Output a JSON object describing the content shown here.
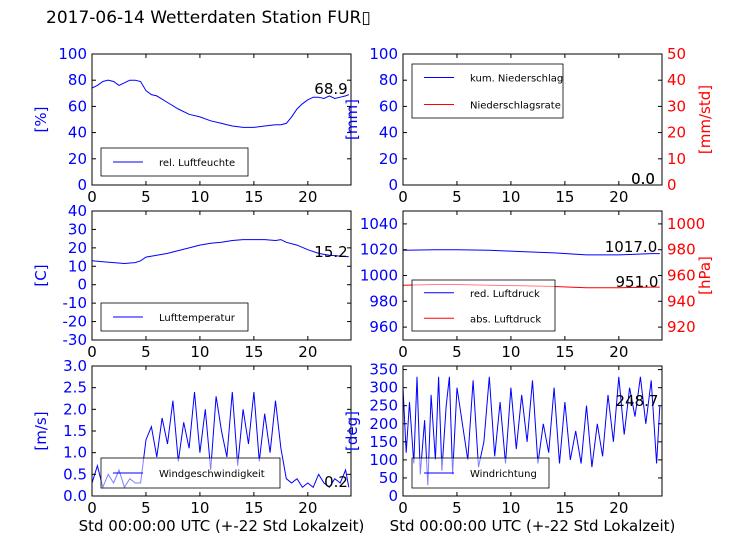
{
  "figure_title": "2017-06-14 Wetterdaten Station FUR▯",
  "colors": {
    "primary": "#0000ff",
    "secondary": "#ff0000",
    "frame": "#000000"
  },
  "chart_data": [
    {
      "type": "line",
      "ylabel": "[%]",
      "xlim": [
        0,
        24
      ],
      "ylim": [
        0,
        100
      ],
      "xticks": [
        0,
        5,
        10,
        15,
        20
      ],
      "yticks": [
        0,
        20,
        40,
        60,
        80,
        100
      ],
      "xlabel": "",
      "last_value_label": "68.9",
      "legend": {
        "placement": "bottom-left",
        "entries": [
          "rel. Luftfeuchte"
        ]
      },
      "series": [
        {
          "name": "rel. Luftfeuchte",
          "color": "#0000ff",
          "x": [
            0,
            0.5,
            1,
            1.5,
            2,
            2.5,
            3,
            3.5,
            4,
            4.5,
            5,
            5.5,
            6,
            7,
            8,
            9,
            10,
            11,
            12,
            13,
            14,
            15,
            16,
            17,
            17.5,
            18,
            18.5,
            19,
            19.5,
            20,
            20.5,
            21,
            21.5,
            22,
            22.5,
            23,
            23.5,
            23.8
          ],
          "y": [
            74,
            76,
            79,
            80,
            79,
            76,
            78,
            80,
            80,
            79,
            72,
            69,
            68,
            63,
            58,
            54,
            52,
            49,
            47,
            45,
            44,
            44,
            45,
            46,
            46,
            47,
            52,
            58,
            62,
            65,
            67,
            67,
            66,
            68,
            66,
            67,
            68,
            69
          ]
        }
      ]
    },
    {
      "type": "line",
      "ylabel": "[mm]",
      "ylabel_right": "[mm/std]",
      "xlim": [
        0,
        24
      ],
      "ylim": [
        0,
        100
      ],
      "ylim_right": [
        0,
        50
      ],
      "xticks": [
        0,
        5,
        10,
        15,
        20
      ],
      "yticks": [
        0,
        20,
        40,
        60,
        80,
        100
      ],
      "yticks_right": [
        0,
        10,
        20,
        30,
        40,
        50
      ],
      "xlabel": "",
      "last_value_label": "0.0",
      "last_value_label_right": "0.0",
      "legend": {
        "placement": "top-left",
        "entries": [
          "kum. Niederschlag",
          "Niederschlagsrate"
        ]
      },
      "series": [
        {
          "name": "kum. Niederschlag",
          "axis": "left",
          "color": "#0000ff",
          "x": [
            0,
            24
          ],
          "y": [
            0,
            0
          ]
        },
        {
          "name": "Niederschlagsrate",
          "axis": "right",
          "color": "#ff0000",
          "x": [
            0,
            24
          ],
          "y": [
            0,
            0
          ]
        }
      ]
    },
    {
      "type": "line",
      "ylabel": "[C]",
      "xlim": [
        0,
        24
      ],
      "ylim": [
        -30,
        40
      ],
      "xticks": [
        0,
        5,
        10,
        15,
        20
      ],
      "yticks": [
        -30,
        -20,
        -10,
        0,
        10,
        20,
        30,
        40
      ],
      "xlabel": "",
      "last_value_label": "15.2",
      "legend": {
        "placement": "bottom-left",
        "entries": [
          "Lufttemperatur"
        ]
      },
      "series": [
        {
          "name": "Lufttemperatur",
          "color": "#0000ff",
          "x": [
            0,
            1,
            2,
            3,
            4,
            4.5,
            5,
            6,
            7,
            8,
            9,
            10,
            11,
            12,
            13,
            14,
            15,
            16,
            17,
            17.5,
            18,
            19,
            20,
            21,
            22,
            23,
            23.8
          ],
          "y": [
            13,
            12.5,
            12,
            11.5,
            12,
            13,
            15,
            16,
            17,
            18.5,
            20,
            21.5,
            22.5,
            23,
            24,
            24.5,
            24.5,
            24.5,
            24,
            24.5,
            23,
            21.5,
            19,
            17,
            16,
            15.5,
            15.2
          ]
        }
      ]
    },
    {
      "type": "line",
      "ylabel": "",
      "ylabel_right": "[hPa]",
      "xlim": [
        0,
        24
      ],
      "ylim": [
        950,
        1050
      ],
      "ylim_right": [
        910,
        1010
      ],
      "xticks": [
        0,
        5,
        10,
        15,
        20
      ],
      "yticks": [
        960,
        980,
        1000,
        1020,
        1040
      ],
      "yticks_right": [
        920,
        940,
        960,
        980,
        1000
      ],
      "xlabel": "",
      "last_value_label": "1017.0",
      "last_value_label_right": "951.0",
      "legend": {
        "placement": "bottom-left",
        "entries": [
          "red. Luftdruck",
          "abs. Luftdruck"
        ]
      },
      "series": [
        {
          "name": "red. Luftdruck",
          "axis": "left",
          "color": "#0000ff",
          "x": [
            0,
            3,
            5,
            8,
            11,
            14,
            17,
            20,
            23,
            23.8
          ],
          "y": [
            1019.5,
            1020,
            1020,
            1019.5,
            1018.5,
            1017.5,
            1016,
            1016,
            1017,
            1017
          ]
        },
        {
          "name": "abs. Luftdruck",
          "axis": "right",
          "color": "#ff0000",
          "x": [
            0,
            3,
            5,
            8,
            11,
            14,
            17,
            20,
            23,
            23.8
          ],
          "y": [
            952.5,
            953,
            953,
            952.5,
            952,
            951.5,
            950.5,
            950.5,
            951,
            951
          ]
        }
      ]
    },
    {
      "type": "line",
      "ylabel": "[m/s]",
      "xlim": [
        0,
        24
      ],
      "ylim": [
        0,
        3.0
      ],
      "xticks": [
        0,
        5,
        10,
        15,
        20
      ],
      "yticks": [
        0.0,
        0.5,
        1.0,
        1.5,
        2.0,
        2.5,
        3.0
      ],
      "xlabel": "Std 00:00:00 UTC (+-22 Std Lokalzeit)",
      "last_value_label": "0.2",
      "legend": {
        "placement": "bottom-left",
        "entries": [
          "Windgeschwindigkeit"
        ]
      },
      "series": [
        {
          "name": "Windgeschwindigkeit",
          "color": "#0000ff",
          "x": [
            0,
            0.5,
            1,
            1.5,
            2,
            2.5,
            3,
            3.5,
            4,
            4.5,
            5,
            5.5,
            6,
            6.5,
            7,
            7.5,
            8,
            8.5,
            9,
            9.5,
            10,
            10.5,
            11,
            11.5,
            12,
            12.5,
            13,
            13.5,
            14,
            14.5,
            15,
            15.5,
            16,
            16.5,
            17,
            17.5,
            18,
            18.5,
            19,
            19.5,
            20,
            20.5,
            21,
            21.5,
            22,
            22.5,
            23,
            23.5,
            23.8
          ],
          "y": [
            0.3,
            0.7,
            0.2,
            0.5,
            0.3,
            0.6,
            0.2,
            0.4,
            0.3,
            0.3,
            1.3,
            1.6,
            0.9,
            1.8,
            1.2,
            2.2,
            0.8,
            1.7,
            1.1,
            2.4,
            1.0,
            2.0,
            0.6,
            2.3,
            1.5,
            0.9,
            2.4,
            0.7,
            2.0,
            1.2,
            2.4,
            0.8,
            1.9,
            1.0,
            2.2,
            1.1,
            0.4,
            0.3,
            0.4,
            0.2,
            0.3,
            0.2,
            0.5,
            0.3,
            0.2,
            0.4,
            0.3,
            0.6,
            0.2
          ]
        }
      ]
    },
    {
      "type": "line",
      "ylabel": "[deg]",
      "xlim": [
        0,
        24
      ],
      "ylim": [
        0,
        360
      ],
      "xticks": [
        0,
        5,
        10,
        15,
        20
      ],
      "yticks": [
        0,
        50,
        100,
        150,
        200,
        250,
        300,
        350
      ],
      "xlabel": "Std 00:00:00 UTC (+-22 Std Lokalzeit)",
      "last_value_label": "248.7",
      "legend": {
        "placement": "bottom-left",
        "entries": [
          "Windrichtung"
        ]
      },
      "series": [
        {
          "name": "Windrichtung",
          "color": "#0000ff",
          "x": [
            0,
            0.3,
            0.6,
            1,
            1.3,
            1.6,
            2,
            2.3,
            2.6,
            3,
            3.3,
            3.6,
            4,
            4.3,
            4.6,
            5,
            5.5,
            6,
            6.5,
            7,
            7.5,
            8,
            8.5,
            9,
            9.5,
            10,
            10.5,
            11,
            11.5,
            12,
            12.5,
            13,
            13.5,
            14,
            14.5,
            15,
            15.5,
            16,
            16.5,
            17,
            17.5,
            18,
            18.5,
            19,
            19.5,
            20,
            20.5,
            21,
            21.5,
            22,
            22.5,
            23,
            23.5,
            23.8
          ],
          "y": [
            300,
            120,
            260,
            90,
            330,
            60,
            210,
            30,
            280,
            100,
            330,
            70,
            250,
            330,
            60,
            300,
            200,
            100,
            320,
            80,
            150,
            330,
            110,
            260,
            90,
            300,
            130,
            280,
            150,
            320,
            90,
            200,
            120,
            300,
            90,
            260,
            100,
            180,
            90,
            250,
            80,
            200,
            110,
            280,
            150,
            330,
            170,
            300,
            220,
            330,
            200,
            320,
            90,
            249
          ]
        }
      ]
    }
  ]
}
